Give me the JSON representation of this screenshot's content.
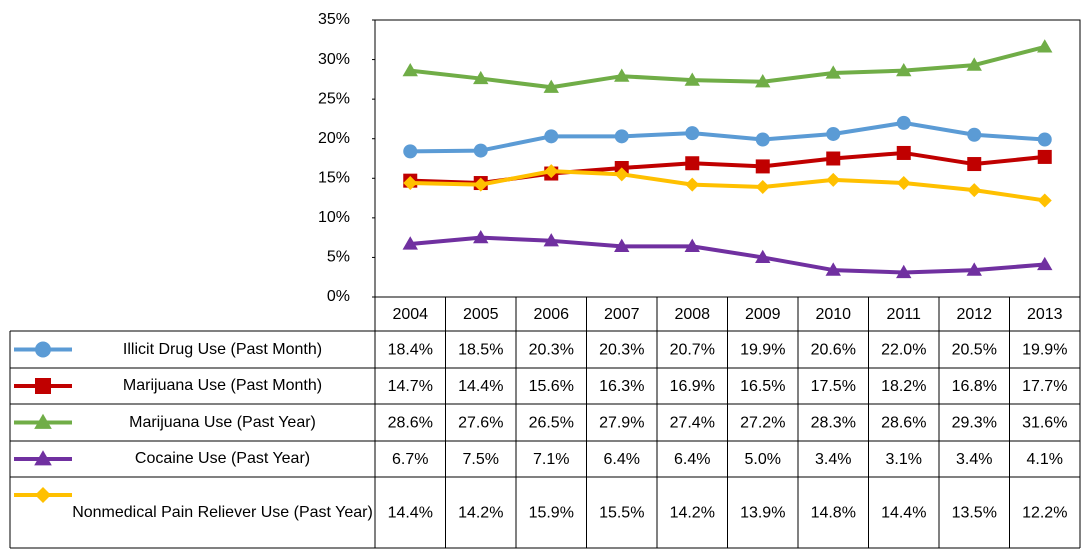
{
  "chart_data": {
    "type": "line",
    "categories": [
      "2004",
      "2005",
      "2006",
      "2007",
      "2008",
      "2009",
      "2010",
      "2011",
      "2012",
      "2013"
    ],
    "ylim": [
      0,
      35
    ],
    "yticks": [
      {
        "value": 0,
        "label": "0%"
      },
      {
        "value": 5,
        "label": "5%"
      },
      {
        "value": 10,
        "label": "10%"
      },
      {
        "value": 15,
        "label": "15%"
      },
      {
        "value": 20,
        "label": "20%"
      },
      {
        "value": 25,
        "label": "25%"
      },
      {
        "value": 30,
        "label": "30%"
      },
      {
        "value": 35,
        "label": "35%"
      }
    ],
    "series": [
      {
        "name": "Illicit Drug Use (Past Month)",
        "color": "#5b9bd5",
        "marker": "circle",
        "values": [
          18.4,
          18.5,
          20.3,
          20.3,
          20.7,
          19.9,
          20.6,
          22.0,
          20.5,
          19.9
        ],
        "value_labels": [
          "18.4%",
          "18.5%",
          "20.3%",
          "20.3%",
          "20.7%",
          "19.9%",
          "20.6%",
          "22.0%",
          "20.5%",
          "19.9%"
        ]
      },
      {
        "name": "Marijuana Use (Past Month)",
        "color": "#c00000",
        "marker": "square",
        "values": [
          14.7,
          14.4,
          15.6,
          16.3,
          16.9,
          16.5,
          17.5,
          18.2,
          16.8,
          17.7
        ],
        "value_labels": [
          "14.7%",
          "14.4%",
          "15.6%",
          "16.3%",
          "16.9%",
          "16.5%",
          "17.5%",
          "18.2%",
          "16.8%",
          "17.7%"
        ]
      },
      {
        "name": "Marijuana Use (Past Year)",
        "color": "#70ad47",
        "marker": "triangle",
        "values": [
          28.6,
          27.6,
          26.5,
          27.9,
          27.4,
          27.2,
          28.3,
          28.6,
          29.3,
          31.6
        ],
        "value_labels": [
          "28.6%",
          "27.6%",
          "26.5%",
          "27.9%",
          "27.4%",
          "27.2%",
          "28.3%",
          "28.6%",
          "29.3%",
          "31.6%"
        ]
      },
      {
        "name": "Cocaine Use (Past Year)",
        "color": "#7030a0",
        "marker": "triangle",
        "values": [
          6.7,
          7.5,
          7.1,
          6.4,
          6.4,
          5.0,
          3.4,
          3.1,
          3.4,
          4.1
        ],
        "value_labels": [
          "6.7%",
          "7.5%",
          "7.1%",
          "6.4%",
          "6.4%",
          "5.0%",
          "3.4%",
          "3.1%",
          "3.4%",
          "4.1%"
        ]
      },
      {
        "name": "Nonmedical Pain Reliever Use (Past Year)",
        "color": "#ffc000",
        "marker": "diamond",
        "values": [
          14.4,
          14.2,
          15.9,
          15.5,
          14.2,
          13.9,
          14.8,
          14.4,
          13.5,
          12.2
        ],
        "value_labels": [
          "14.4%",
          "14.2%",
          "15.9%",
          "15.5%",
          "14.2%",
          "13.9%",
          "14.8%",
          "14.4%",
          "13.5%",
          "12.2%"
        ]
      }
    ]
  }
}
